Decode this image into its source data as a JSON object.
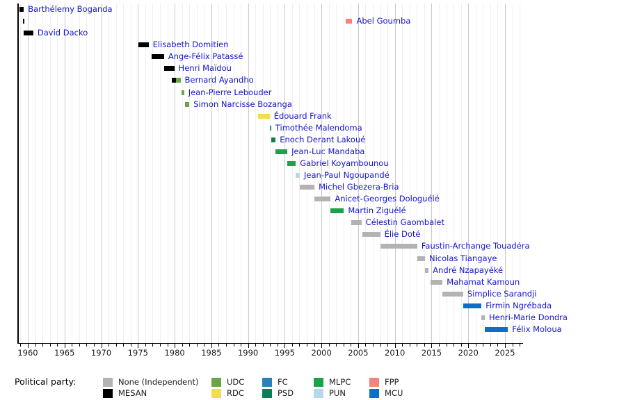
{
  "chart_data": {
    "type": "timeline",
    "description": "Gantt-style timeline of heads of government terms with political party colors",
    "x_axis": {
      "min_year": 1958.6,
      "max_year": 2027.5,
      "major_tick_years": [
        1960,
        1965,
        1970,
        1975,
        1980,
        1985,
        1990,
        1995,
        2000,
        2005,
        2010,
        2015,
        2020,
        2025
      ],
      "minor_tick_step": 1,
      "grid": true
    },
    "label_color": "#1414CC",
    "party_colors": {
      "None (Independent)": "#B3B3B3",
      "MESAN": "#000000",
      "UDC": "#6BA547",
      "RDC": "#F2DE49",
      "FC": "#2C7FB8",
      "PSD": "#0E7C55",
      "MLPC": "#1DA24C",
      "PUN": "#B7D8E8",
      "FPP": "#F2837F",
      "MCU": "#0E6DC8"
    },
    "legend": {
      "title": "Political party:",
      "columns": [
        [
          "None (Independent)",
          "MESAN"
        ],
        [
          "UDC",
          "RDC"
        ],
        [
          "FC",
          "PSD"
        ],
        [
          "MLPC",
          "PUN"
        ],
        [
          "FPP",
          "MCU"
        ]
      ]
    },
    "people": [
      {
        "name": "Barthélemy Boganda",
        "bars": [
          {
            "party": "MESAN",
            "start": 1958.85,
            "end": 1959.45
          }
        ]
      },
      {
        "name": "Abel Goumba",
        "bars": [
          {
            "party": "MESAN",
            "start": 1959.3,
            "end": 1959.5
          },
          {
            "party": "FPP",
            "start": 2003.3,
            "end": 2004.2
          }
        ]
      },
      {
        "name": "David Dacko",
        "bars": [
          {
            "party": "MESAN",
            "start": 1959.45,
            "end": 1960.75
          }
        ]
      },
      {
        "name": "Elisabeth Domitien",
        "bars": [
          {
            "party": "MESAN",
            "start": 1975.05,
            "end": 1976.45
          }
        ]
      },
      {
        "name": "Ange-Félix Patassé",
        "bars": [
          {
            "party": "MESAN",
            "start": 1976.85,
            "end": 1978.55
          }
        ]
      },
      {
        "name": "Henri Maïdou",
        "bars": [
          {
            "party": "MESAN",
            "start": 1978.55,
            "end": 1979.95
          }
        ]
      },
      {
        "name": "Bernard Ayandho",
        "bars": [
          {
            "party": "MESAN",
            "start": 1979.6,
            "end": 1980.2
          },
          {
            "party": "UDC",
            "start": 1980.2,
            "end": 1980.8
          }
        ]
      },
      {
        "name": "Jean-Pierre Lebouder",
        "bars": [
          {
            "party": "UDC",
            "start": 1980.9,
            "end": 1981.3
          }
        ]
      },
      {
        "name": "Simon Narcisse Bozanga",
        "bars": [
          {
            "party": "UDC",
            "start": 1981.45,
            "end": 1982.0
          }
        ]
      },
      {
        "name": "Édouard Frank",
        "bars": [
          {
            "party": "RDC",
            "start": 1991.4,
            "end": 1992.95
          }
        ]
      },
      {
        "name": "Timothée Malendoma",
        "bars": [
          {
            "party": "FC",
            "start": 1992.95,
            "end": 1993.15
          }
        ]
      },
      {
        "name": "Enoch Derant Lakoué",
        "bars": [
          {
            "party": "PSD",
            "start": 1993.15,
            "end": 1993.75
          }
        ]
      },
      {
        "name": "Jean-Luc Mandaba",
        "bars": [
          {
            "party": "MLPC",
            "start": 1993.75,
            "end": 1995.35
          }
        ]
      },
      {
        "name": "Gabriel Koyambounou",
        "bars": [
          {
            "party": "MLPC",
            "start": 1995.35,
            "end": 1996.5
          }
        ]
      },
      {
        "name": "Jean-Paul Ngoupandé",
        "bars": [
          {
            "party": "PUN",
            "start": 1996.5,
            "end": 1997.05
          }
        ]
      },
      {
        "name": "Michel Gbezera-Bria",
        "bars": [
          {
            "party": "None (Independent)",
            "start": 1997.05,
            "end": 1999.05
          }
        ]
      },
      {
        "name": "Anicet-Georges Dologuélé",
        "bars": [
          {
            "party": "None (Independent)",
            "start": 1999.05,
            "end": 2001.25
          }
        ]
      },
      {
        "name": "Martin Ziguélé",
        "bars": [
          {
            "party": "MLPC",
            "start": 2001.25,
            "end": 2003.05
          }
        ]
      },
      {
        "name": "Célestin Gaombalet",
        "bars": [
          {
            "party": "None (Independent)",
            "start": 2004.05,
            "end": 2005.45
          }
        ]
      },
      {
        "name": "Élie Doté",
        "bars": [
          {
            "party": "None (Independent)",
            "start": 2005.6,
            "end": 2008.0
          }
        ]
      },
      {
        "name": "Faustin-Archange Touadéra",
        "bars": [
          {
            "party": "None (Independent)",
            "start": 2008.0,
            "end": 2013.05
          }
        ]
      },
      {
        "name": "Nicolas Tiangaye",
        "bars": [
          {
            "party": "None (Independent)",
            "start": 2013.05,
            "end": 2014.1
          }
        ]
      },
      {
        "name": "André Nzapayéké",
        "bars": [
          {
            "party": "None (Independent)",
            "start": 2014.1,
            "end": 2014.6
          }
        ]
      },
      {
        "name": "Mahamat Kamoun",
        "bars": [
          {
            "party": "None (Independent)",
            "start": 2014.85,
            "end": 2016.5
          }
        ]
      },
      {
        "name": "Simplice Sarandji",
        "bars": [
          {
            "party": "None (Independent)",
            "start": 2016.5,
            "end": 2019.3
          }
        ]
      },
      {
        "name": "Firmin Ngrébada",
        "bars": [
          {
            "party": "MCU",
            "start": 2019.3,
            "end": 2021.8
          }
        ]
      },
      {
        "name": "Henri-Marie Dondra",
        "bars": [
          {
            "party": "None (Independent)",
            "start": 2021.8,
            "end": 2022.25
          }
        ]
      },
      {
        "name": "Félix Moloua",
        "bars": [
          {
            "party": "MCU",
            "start": 2022.25,
            "end": 2025.4
          }
        ]
      }
    ]
  }
}
